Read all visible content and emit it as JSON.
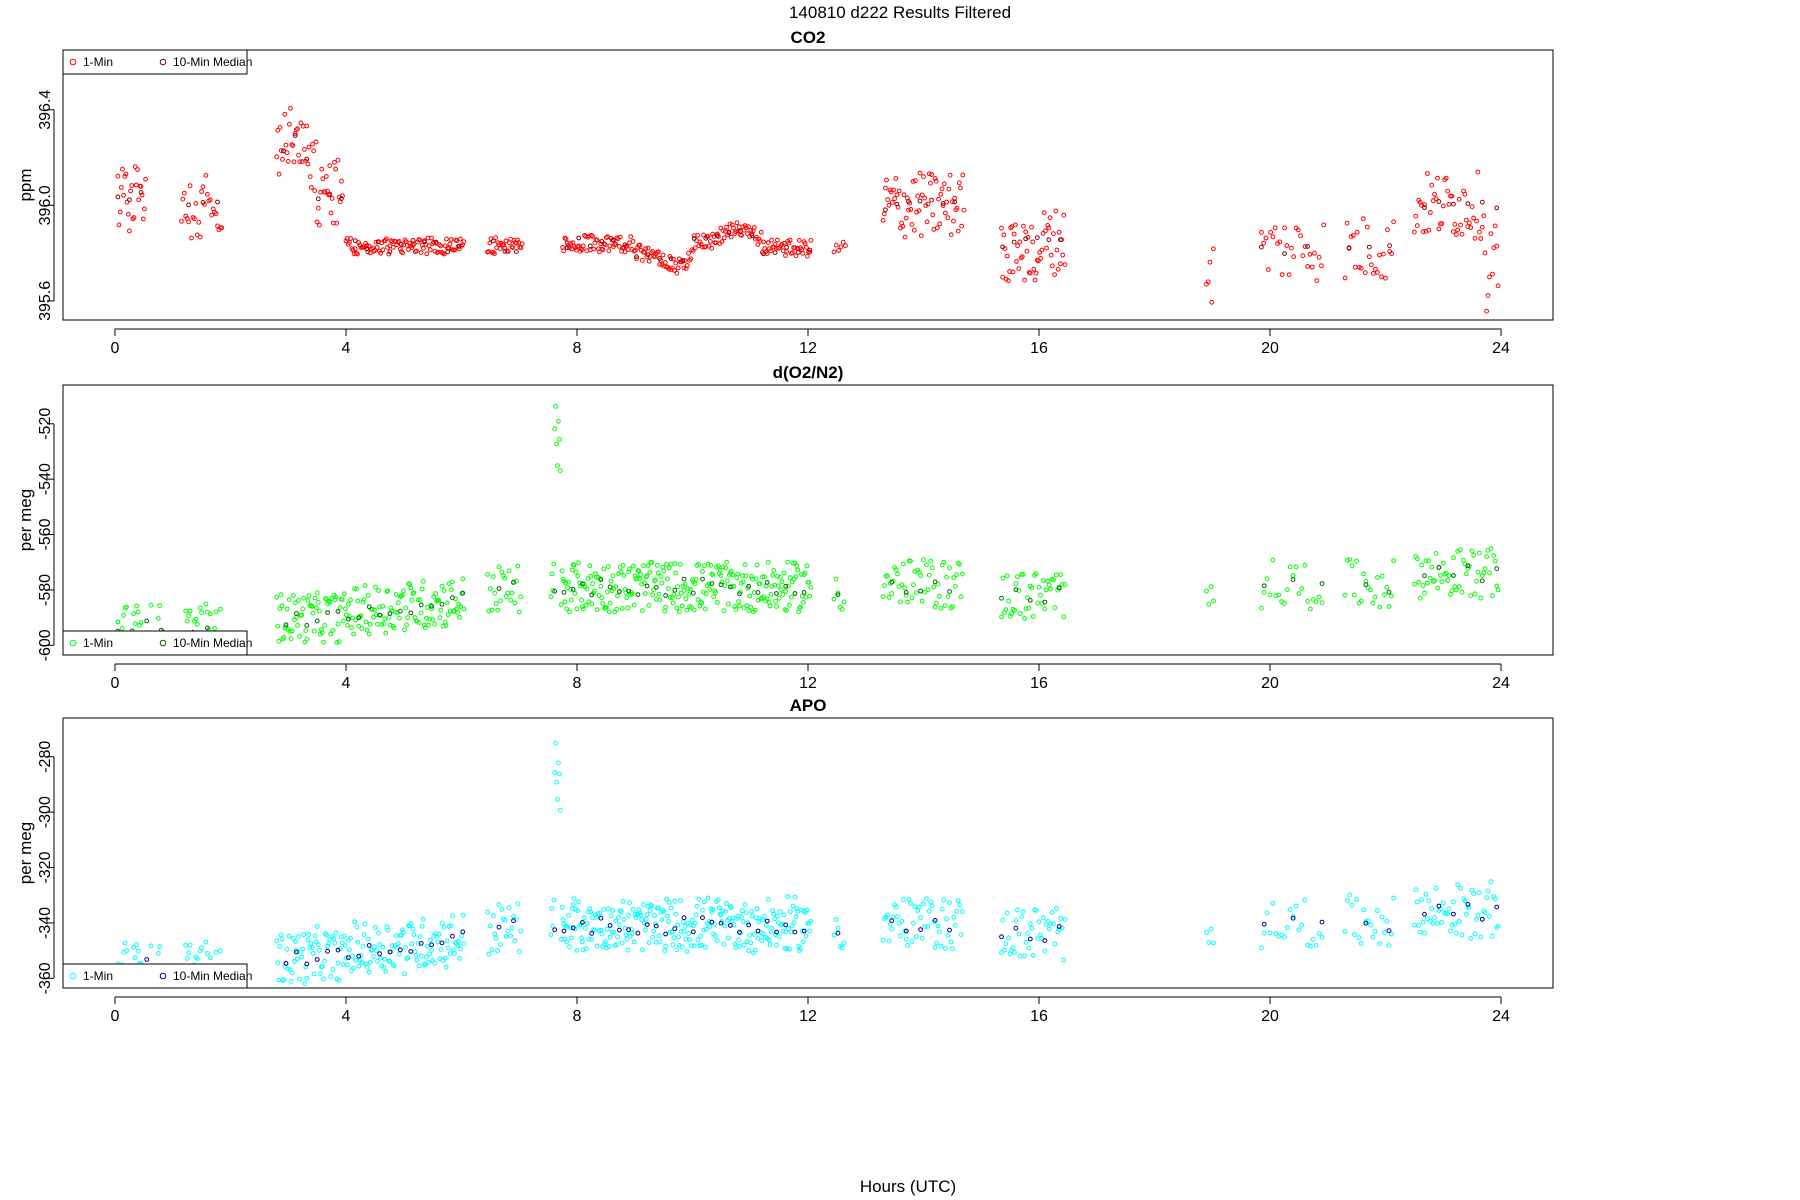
{
  "figure": {
    "suptitle": "140810   d222   Results Filtered",
    "xlabel": "Hours (UTC)"
  },
  "chart_data": [
    {
      "type": "scatter",
      "title": "CO2",
      "ylabel": "ppm",
      "xlim": [
        -0.9,
        24.9
      ],
      "ylim": [
        395.52,
        396.65
      ],
      "xticks": [
        "0",
        "4",
        "8",
        "12",
        "16",
        "20",
        "24"
      ],
      "yticks": [
        "395.6",
        "396.0",
        "396.4"
      ],
      "legend": {
        "position": "top-left",
        "entries": [
          "1-Min",
          "10-Min Median"
        ]
      },
      "series": [
        {
          "name": "1-Min",
          "color": "#ff0000",
          "x": [],
          "y": []
        },
        {
          "name": "10-Min Median",
          "color": "#8b0000",
          "x": [],
          "y": []
        }
      ]
    },
    {
      "type": "scatter",
      "title": "d(O2/N2)",
      "ylabel": "per meg",
      "xlim": [
        -0.9,
        24.9
      ],
      "ylim": [
        -603.5,
        -506
      ],
      "xticks": [
        "0",
        "4",
        "8",
        "12",
        "16",
        "20",
        "24"
      ],
      "yticks": [
        "-600",
        "-580",
        "-560",
        "-540",
        "-520"
      ],
      "legend": {
        "position": "bottom-left",
        "entries": [
          "1-Min",
          "10-Min Median"
        ]
      },
      "series": [
        {
          "name": "1-Min",
          "color": "#00ff00",
          "x": [],
          "y": []
        },
        {
          "name": "10-Min Median",
          "color": "#006400",
          "x": [],
          "y": []
        }
      ]
    },
    {
      "type": "scatter",
      "title": "APO",
      "ylabel": "per meg",
      "xlim": [
        -0.9,
        24.9
      ],
      "ylim": [
        -363.5,
        -266
      ],
      "xticks": [
        "0",
        "4",
        "8",
        "12",
        "16",
        "20",
        "24"
      ],
      "yticks": [
        "-360",
        "-340",
        "-320",
        "-300",
        "-280"
      ],
      "legend": {
        "position": "bottom-left",
        "entries": [
          "1-Min",
          "10-Min Median"
        ]
      },
      "series": [
        {
          "name": "1-Min",
          "color": "#00ffff",
          "x": [],
          "y": []
        },
        {
          "name": "10-Min Median",
          "color": "#00008b",
          "x": [],
          "y": []
        }
      ]
    }
  ]
}
